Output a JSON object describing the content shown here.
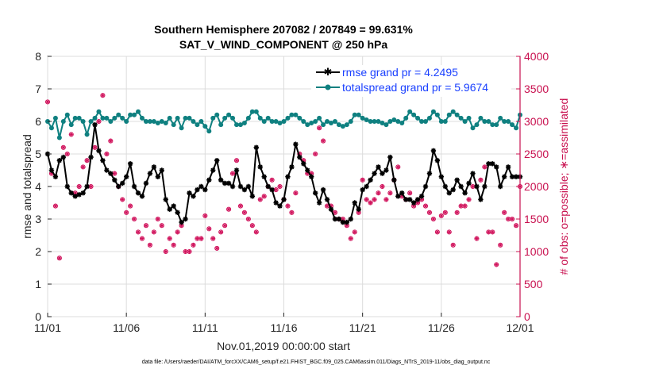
{
  "chart_data": {
    "type": "line",
    "title": "Southern Hemisphere 207082 / 207849 = 99.631%",
    "subtitle": "SAT_V_WIND_COMPONENT @ 250 hPa",
    "xlabel": "Nov.01,2019 00:00:00 start",
    "ylabel": "rmse and totalspread",
    "ylabel_right": "# of obs: o=possible; ∗=assimilated",
    "x_ticks": [
      "11/01",
      "11/06",
      "11/11",
      "11/16",
      "11/21",
      "11/26",
      "12/01"
    ],
    "y_ticks": [
      "0",
      "1",
      "2",
      "3",
      "4",
      "5",
      "6",
      "7",
      "8"
    ],
    "y2_ticks": [
      "0",
      "500",
      "1000",
      "1500",
      "2000",
      "2500",
      "3000",
      "3500",
      "4000"
    ],
    "xlim": [
      0,
      30
    ],
    "ylim": [
      0,
      8
    ],
    "y2lim": [
      0,
      4000
    ],
    "legend_position": "top-right",
    "footer": "data file: /Users/raeder/DAI/ATM_forcXX/CAM6_setup/f.e21.FHIST_BGC.f09_025.CAM6assim.011/Diags_NTrS_2019-11/obs_diag_output.nc",
    "colors": {
      "rmse": "#000000",
      "spread": "#0f8080",
      "obs": "#d0105a",
      "right_axis": "#c8104f",
      "legend_text": "#1a40ff"
    },
    "series": [
      {
        "name": "rmse grand pr = 4.2495",
        "key": "rmse",
        "x": [
          0.0,
          0.25,
          0.5,
          0.75,
          1.0,
          1.25,
          1.5,
          1.75,
          2.0,
          2.25,
          2.5,
          2.75,
          3.0,
          3.25,
          3.5,
          3.75,
          4.0,
          4.25,
          4.5,
          4.75,
          5.0,
          5.25,
          5.5,
          5.75,
          6.0,
          6.25,
          6.5,
          6.75,
          7.0,
          7.25,
          7.5,
          7.75,
          8.0,
          8.25,
          8.5,
          8.75,
          9.0,
          9.25,
          9.5,
          9.75,
          10.0,
          10.25,
          10.5,
          10.75,
          11.0,
          11.25,
          11.5,
          11.75,
          12.0,
          12.25,
          12.5,
          12.75,
          13.0,
          13.25,
          13.5,
          13.75,
          14.0,
          14.25,
          14.5,
          14.75,
          15.0,
          15.25,
          15.5,
          15.75,
          16.0,
          16.25,
          16.5,
          16.75,
          17.0,
          17.25,
          17.5,
          17.75,
          18.0,
          18.25,
          18.5,
          18.75,
          19.0,
          19.25,
          19.5,
          19.75,
          20.0,
          20.25,
          20.5,
          20.75,
          21.0,
          21.25,
          21.5,
          21.75,
          22.0,
          22.25,
          22.5,
          22.75,
          23.0,
          23.25,
          23.5,
          23.75,
          24.0,
          24.25,
          24.5,
          24.75,
          25.0,
          25.25,
          25.5,
          25.75,
          26.0,
          26.25,
          26.5,
          26.75,
          27.0,
          27.25,
          27.5,
          27.75,
          28.0,
          28.25,
          28.5,
          28.75,
          29.0,
          29.25,
          29.5,
          29.75,
          30.0
        ],
        "values": [
          5.0,
          4.5,
          4.3,
          4.8,
          4.9,
          4.0,
          3.8,
          3.7,
          3.75,
          3.8,
          4.0,
          4.9,
          5.9,
          5.1,
          4.8,
          4.5,
          4.4,
          4.2,
          4.0,
          4.1,
          4.3,
          4.7,
          4.0,
          3.8,
          3.7,
          4.1,
          4.4,
          4.6,
          4.3,
          4.5,
          3.6,
          3.3,
          3.4,
          3.2,
          2.9,
          3.0,
          3.8,
          3.7,
          3.9,
          4.0,
          3.9,
          4.2,
          4.5,
          4.8,
          4.2,
          4.1,
          4.1,
          4.0,
          4.5,
          4.0,
          3.9,
          4.0,
          3.7,
          5.2,
          4.6,
          4.3,
          4.0,
          3.9,
          3.5,
          3.4,
          3.6,
          4.3,
          4.6,
          5.3,
          4.9,
          4.7,
          4.5,
          4.3,
          3.8,
          3.5,
          3.9,
          3.6,
          3.3,
          3.0,
          3.0,
          2.9,
          2.9,
          3.0,
          3.5,
          3.3,
          3.9,
          4.0,
          4.2,
          4.4,
          4.6,
          4.4,
          4.5,
          4.9,
          4.2,
          3.7,
          3.8,
          3.6,
          3.6,
          3.5,
          3.6,
          3.7,
          4.0,
          4.4,
          5.1,
          4.8,
          4.3,
          4.0,
          3.8,
          3.9,
          4.2,
          4.0,
          3.8,
          4.1,
          4.4,
          4.0,
          3.6,
          4.0,
          4.7,
          4.7,
          4.6,
          4.0,
          4.3,
          4.6,
          4.3,
          4.3,
          4.3
        ]
      },
      {
        "name": "totalspread grand pr = 5.9674",
        "key": "spread",
        "x": [
          0.0,
          0.25,
          0.5,
          0.75,
          1.0,
          1.25,
          1.5,
          1.75,
          2.0,
          2.25,
          2.5,
          2.75,
          3.0,
          3.25,
          3.5,
          3.75,
          4.0,
          4.25,
          4.5,
          4.75,
          5.0,
          5.25,
          5.5,
          5.75,
          6.0,
          6.25,
          6.5,
          6.75,
          7.0,
          7.25,
          7.5,
          7.75,
          8.0,
          8.25,
          8.5,
          8.75,
          9.0,
          9.25,
          9.5,
          9.75,
          10.0,
          10.25,
          10.5,
          10.75,
          11.0,
          11.25,
          11.5,
          11.75,
          12.0,
          12.25,
          12.5,
          12.75,
          13.0,
          13.25,
          13.5,
          13.75,
          14.0,
          14.25,
          14.5,
          14.75,
          15.0,
          15.25,
          15.5,
          15.75,
          16.0,
          16.25,
          16.5,
          16.75,
          17.0,
          17.25,
          17.5,
          17.75,
          18.0,
          18.25,
          18.5,
          18.75,
          19.0,
          19.25,
          19.5,
          19.75,
          20.0,
          20.25,
          20.5,
          20.75,
          21.0,
          21.25,
          21.5,
          21.75,
          22.0,
          22.25,
          22.5,
          22.75,
          23.0,
          23.25,
          23.5,
          23.75,
          24.0,
          24.25,
          24.5,
          24.75,
          25.0,
          25.25,
          25.5,
          25.75,
          26.0,
          26.25,
          26.5,
          26.75,
          27.0,
          27.25,
          27.5,
          27.75,
          28.0,
          28.25,
          28.5,
          28.75,
          29.0,
          29.25,
          29.5,
          29.75,
          30.0
        ],
        "values": [
          6.0,
          5.8,
          6.1,
          5.5,
          6.0,
          6.2,
          5.9,
          6.1,
          6.1,
          6.0,
          5.6,
          6.0,
          6.1,
          6.3,
          6.1,
          6.1,
          6.0,
          6.1,
          6.2,
          6.1,
          6.0,
          6.2,
          6.2,
          6.3,
          6.1,
          6.0,
          6.0,
          6.0,
          5.95,
          6.0,
          5.95,
          6.1,
          5.9,
          6.1,
          5.8,
          6.1,
          6.1,
          6.0,
          5.9,
          6.0,
          5.85,
          5.7,
          6.1,
          6.2,
          5.9,
          6.1,
          6.2,
          6.1,
          5.9,
          5.9,
          5.95,
          6.1,
          6.3,
          6.3,
          6.1,
          6.0,
          6.1,
          6.0,
          6.0,
          5.95,
          6.0,
          6.1,
          6.2,
          6.2,
          6.1,
          6.0,
          5.9,
          5.95,
          6.0,
          6.1,
          5.9,
          6.0,
          5.95,
          6.0,
          5.9,
          5.85,
          5.9,
          6.0,
          6.2,
          6.2,
          6.1,
          6.05,
          6.0,
          6.0,
          6.0,
          5.95,
          5.9,
          6.0,
          6.05,
          6.0,
          5.95,
          6.1,
          6.3,
          6.2,
          6.1,
          6.0,
          6.0,
          6.1,
          6.3,
          6.2,
          6.0,
          6.0,
          6.2,
          6.3,
          6.2,
          6.1,
          6.0,
          6.1,
          5.8,
          5.9,
          6.1,
          6.0,
          6.0,
          5.9,
          5.9,
          6.1,
          6.0,
          6.0,
          5.9,
          5.8,
          6.2
        ]
      }
    ],
    "obs_counts": {
      "x": [
        0.0,
        0.25,
        0.5,
        0.75,
        1.0,
        1.25,
        1.5,
        1.75,
        2.0,
        2.25,
        2.5,
        2.75,
        3.0,
        3.25,
        3.5,
        3.75,
        4.0,
        4.25,
        4.5,
        4.75,
        5.0,
        5.25,
        5.5,
        5.75,
        6.0,
        6.25,
        6.5,
        6.75,
        7.0,
        7.25,
        7.5,
        7.75,
        8.0,
        8.25,
        8.5,
        8.75,
        9.0,
        9.25,
        9.5,
        9.75,
        10.0,
        10.25,
        10.5,
        10.75,
        11.0,
        11.25,
        11.5,
        11.75,
        12.0,
        12.25,
        12.5,
        12.75,
        13.0,
        13.25,
        13.5,
        13.75,
        14.0,
        14.25,
        14.5,
        14.75,
        15.0,
        15.25,
        15.5,
        15.75,
        16.0,
        16.25,
        16.5,
        16.75,
        17.0,
        17.25,
        17.5,
        17.75,
        18.0,
        18.25,
        18.5,
        18.75,
        19.0,
        19.25,
        19.5,
        19.75,
        20.0,
        20.25,
        20.5,
        20.75,
        21.0,
        21.25,
        21.5,
        21.75,
        22.0,
        22.25,
        22.5,
        22.75,
        23.0,
        23.25,
        23.5,
        23.75,
        24.0,
        24.25,
        24.5,
        24.75,
        25.0,
        25.25,
        25.5,
        25.75,
        26.0,
        26.25,
        26.5,
        26.75,
        27.0,
        27.25,
        27.5,
        27.75,
        28.0,
        28.25,
        28.5,
        28.75,
        29.0,
        29.25,
        29.5,
        29.75,
        30.0
      ],
      "values": [
        3300,
        2200,
        1700,
        900,
        2600,
        2500,
        2800,
        1900,
        2000,
        2300,
        2400,
        2000,
        2600,
        3000,
        3400,
        2500,
        2700,
        2200,
        2000,
        1800,
        1600,
        1700,
        1500,
        1300,
        1200,
        1400,
        1100,
        1300,
        1500,
        1400,
        1000,
        1200,
        1100,
        1300,
        1400,
        1000,
        1000,
        1100,
        1200,
        1200,
        1550,
        1350,
        1200,
        1050,
        1300,
        1400,
        1650,
        2200,
        2400,
        1700,
        1600,
        1500,
        1400,
        1300,
        1800,
        1850,
        2000,
        2100,
        1950,
        2000,
        1800,
        1700,
        1600,
        1900,
        2500,
        2400,
        2200,
        2200,
        2500,
        2900,
        2700,
        1700,
        1700,
        1600,
        1500,
        1500,
        1400,
        1200,
        1300,
        1600,
        2100,
        1800,
        1750,
        1800,
        1900,
        2000,
        1800,
        1900,
        2100,
        2300,
        1850,
        1800,
        1900,
        1700,
        1750,
        1800,
        1700,
        1600,
        1500,
        1300,
        1550,
        1600,
        1300,
        1100,
        1600,
        1700,
        1700,
        1800,
        2000,
        1200,
        2100,
        2300,
        1300,
        1300,
        800,
        1100,
        1600,
        1500,
        1500,
        1400,
        2000
      ]
    }
  }
}
